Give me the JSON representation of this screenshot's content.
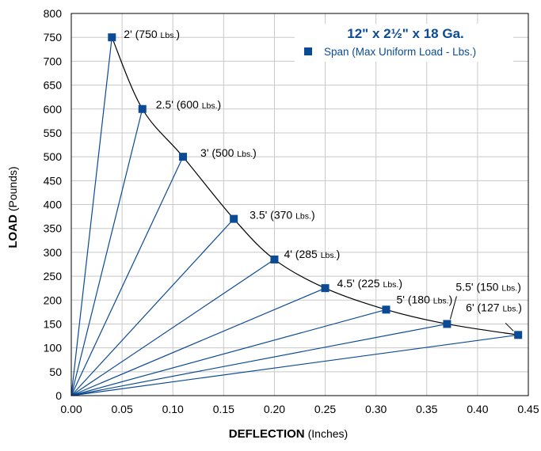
{
  "chart_data": {
    "type": "scatter",
    "title": "12\" x 2½\" x 18 Ga.",
    "legend": {
      "marker_label": "Span (Max Uniform Load - Lbs.)",
      "position": "top-right"
    },
    "xlabel": {
      "bold": "DEFLECTION",
      "normal": "(Inches)"
    },
    "ylabel": {
      "bold": "LOAD",
      "normal": "(Pounds)"
    },
    "xlim": [
      0,
      0.45
    ],
    "ylim": [
      0,
      800
    ],
    "x_ticks": [
      "0.00",
      "0.05",
      "0.10",
      "0.15",
      "0.20",
      "0.25",
      "0.30",
      "0.35",
      "0.40",
      "0.45"
    ],
    "y_ticks": [
      "0",
      "50",
      "100",
      "150",
      "200",
      "250",
      "300",
      "350",
      "400",
      "450",
      "500",
      "550",
      "600",
      "650",
      "700",
      "750",
      "800"
    ],
    "grid": true,
    "series": [
      {
        "name": "Span (Max Uniform Load - Lbs.)",
        "points": [
          {
            "span": "2'",
            "load_label": "750",
            "unit": "Lbs.",
            "x": 0.04,
            "y": 750
          },
          {
            "span": "2.5'",
            "load_label": "600",
            "unit": "Lbs.",
            "x": 0.07,
            "y": 600
          },
          {
            "span": "3'",
            "load_label": "500",
            "unit": "Lbs.",
            "x": 0.11,
            "y": 500
          },
          {
            "span": "3.5'",
            "load_label": "370",
            "unit": "Lbs.",
            "x": 0.16,
            "y": 370
          },
          {
            "span": "4'",
            "load_label": "285",
            "unit": "Lbs.",
            "x": 0.2,
            "y": 285
          },
          {
            "span": "4.5'",
            "load_label": "225",
            "unit": "Lbs.",
            "x": 0.25,
            "y": 225
          },
          {
            "span": "5'",
            "load_label": "180",
            "unit": "Lbs.",
            "x": 0.31,
            "y": 180
          },
          {
            "span": "5.5'",
            "load_label": "150",
            "unit": "Lbs.",
            "x": 0.37,
            "y": 150
          },
          {
            "span": "6'",
            "load_label": "127",
            "unit": "Lbs.",
            "x": 0.44,
            "y": 127
          }
        ]
      }
    ],
    "colors": {
      "marker": "#0b4a94",
      "line": "#0b4a94",
      "curve": "#000000",
      "grid": "#c8c8c8",
      "legend_text": "#0b4a94"
    }
  }
}
